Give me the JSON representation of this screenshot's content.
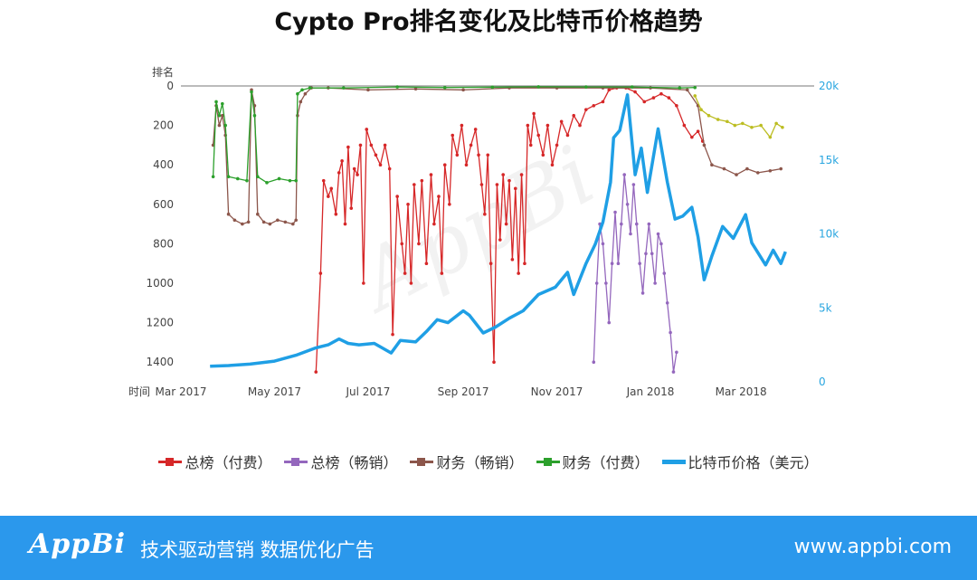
{
  "title": "Cypto Pro排名变化及比特币价格趋势",
  "footer": {
    "logo": "AppBi",
    "slogan": "技术驱动营销 数据优化广告",
    "website": "www.appbi.com"
  },
  "watermark": "AppBi",
  "colors": {
    "total_paid": "#d62728",
    "total_grossing": "#9467bd",
    "finance_grossing": "#8c564b",
    "finance_paid": "#2ca02c",
    "btc": "#1f9fe5",
    "extra": "#bcbd22",
    "footer_bg": "#2b98ec"
  },
  "chart_data": {
    "type": "line",
    "title": "Cypto Pro排名变化及比特币价格趋势",
    "xlabel": "时间",
    "ylabel_left": "排名",
    "ylabel_right": "",
    "x_ticks": [
      "Mar 2017",
      "May 2017",
      "Jul 2017",
      "Sep 2017",
      "Nov 2017",
      "Jan 2018",
      "Mar 2018"
    ],
    "x_range": [
      "2017-03-01",
      "2018-03-31"
    ],
    "y_left_range": [
      1500,
      0
    ],
    "y_left_reversed": true,
    "y_left_ticks": [
      "0",
      "200",
      "400",
      "600",
      "800",
      "1000",
      "1200",
      "1400"
    ],
    "y_right_range": [
      0,
      20000
    ],
    "y_right_ticks": [
      "0",
      "5k",
      "10k",
      "15k",
      "20k"
    ],
    "grid": false,
    "legend_position": "bottom",
    "series": [
      {
        "name": "总榜（付费）",
        "axis": "left",
        "color": "#d62728",
        "marker": true,
        "points": [
          [
            "2017-05-28",
            1450
          ],
          [
            "2017-05-31",
            950
          ],
          [
            "2017-06-02",
            480
          ],
          [
            "2017-06-05",
            560
          ],
          [
            "2017-06-07",
            520
          ],
          [
            "2017-06-10",
            650
          ],
          [
            "2017-06-12",
            440
          ],
          [
            "2017-06-14",
            380
          ],
          [
            "2017-06-16",
            700
          ],
          [
            "2017-06-18",
            310
          ],
          [
            "2017-06-20",
            620
          ],
          [
            "2017-06-22",
            420
          ],
          [
            "2017-06-24",
            450
          ],
          [
            "2017-06-26",
            300
          ],
          [
            "2017-06-28",
            1000
          ],
          [
            "2017-06-30",
            220
          ],
          [
            "2017-07-03",
            300
          ],
          [
            "2017-07-06",
            350
          ],
          [
            "2017-07-09",
            400
          ],
          [
            "2017-07-12",
            300
          ],
          [
            "2017-07-15",
            420
          ],
          [
            "2017-07-17",
            1260
          ],
          [
            "2017-07-20",
            560
          ],
          [
            "2017-07-23",
            800
          ],
          [
            "2017-07-25",
            950
          ],
          [
            "2017-07-27",
            600
          ],
          [
            "2017-07-29",
            1000
          ],
          [
            "2017-07-31",
            500
          ],
          [
            "2017-08-03",
            800
          ],
          [
            "2017-08-05",
            480
          ],
          [
            "2017-08-08",
            900
          ],
          [
            "2017-08-11",
            450
          ],
          [
            "2017-08-13",
            700
          ],
          [
            "2017-08-16",
            560
          ],
          [
            "2017-08-18",
            950
          ],
          [
            "2017-08-20",
            400
          ],
          [
            "2017-08-23",
            600
          ],
          [
            "2017-08-25",
            250
          ],
          [
            "2017-08-28",
            350
          ],
          [
            "2017-08-31",
            200
          ],
          [
            "2017-09-03",
            400
          ],
          [
            "2017-09-06",
            300
          ],
          [
            "2017-09-09",
            220
          ],
          [
            "2017-09-11",
            350
          ],
          [
            "2017-09-13",
            500
          ],
          [
            "2017-09-15",
            650
          ],
          [
            "2017-09-17",
            350
          ],
          [
            "2017-09-19",
            900
          ],
          [
            "2017-09-21",
            1400
          ],
          [
            "2017-09-23",
            500
          ],
          [
            "2017-09-25",
            780
          ],
          [
            "2017-09-27",
            450
          ],
          [
            "2017-09-29",
            700
          ],
          [
            "2017-10-01",
            480
          ],
          [
            "2017-10-03",
            880
          ],
          [
            "2017-10-05",
            520
          ],
          [
            "2017-10-07",
            950
          ],
          [
            "2017-10-09",
            450
          ],
          [
            "2017-10-11",
            900
          ],
          [
            "2017-10-13",
            200
          ],
          [
            "2017-10-15",
            300
          ],
          [
            "2017-10-17",
            140
          ],
          [
            "2017-10-20",
            250
          ],
          [
            "2017-10-23",
            350
          ],
          [
            "2017-10-26",
            200
          ],
          [
            "2017-10-29",
            400
          ],
          [
            "2017-11-01",
            300
          ],
          [
            "2017-11-04",
            180
          ],
          [
            "2017-11-08",
            250
          ],
          [
            "2017-11-12",
            150
          ],
          [
            "2017-11-16",
            200
          ],
          [
            "2017-11-20",
            120
          ],
          [
            "2017-11-25",
            100
          ],
          [
            "2017-12-01",
            80
          ],
          [
            "2017-12-05",
            20
          ],
          [
            "2017-12-10",
            10
          ],
          [
            "2017-12-16",
            10
          ],
          [
            "2017-12-22",
            30
          ],
          [
            "2017-12-28",
            80
          ],
          [
            "2018-01-03",
            60
          ],
          [
            "2018-01-08",
            40
          ],
          [
            "2018-01-13",
            60
          ],
          [
            "2018-01-18",
            100
          ],
          [
            "2018-01-23",
            200
          ],
          [
            "2018-01-28",
            260
          ],
          [
            "2018-02-01",
            230
          ],
          [
            "2018-02-04",
            280
          ]
        ]
      },
      {
        "name": "总榜（畅销）",
        "axis": "left",
        "color": "#9467bd",
        "marker": true,
        "points": [
          [
            "2017-11-25",
            1400
          ],
          [
            "2017-11-27",
            1000
          ],
          [
            "2017-11-29",
            700
          ],
          [
            "2017-12-01",
            800
          ],
          [
            "2017-12-03",
            1000
          ],
          [
            "2017-12-05",
            1200
          ],
          [
            "2017-12-07",
            900
          ],
          [
            "2017-12-09",
            640
          ],
          [
            "2017-12-11",
            900
          ],
          [
            "2017-12-13",
            700
          ],
          [
            "2017-12-15",
            450
          ],
          [
            "2017-12-17",
            600
          ],
          [
            "2017-12-19",
            750
          ],
          [
            "2017-12-21",
            500
          ],
          [
            "2017-12-23",
            700
          ],
          [
            "2017-12-25",
            900
          ],
          [
            "2017-12-27",
            1050
          ],
          [
            "2017-12-29",
            850
          ],
          [
            "2017-12-31",
            700
          ],
          [
            "2018-01-02",
            850
          ],
          [
            "2018-01-04",
            1000
          ],
          [
            "2018-01-06",
            750
          ],
          [
            "2018-01-08",
            800
          ],
          [
            "2018-01-10",
            950
          ],
          [
            "2018-01-12",
            1100
          ],
          [
            "2018-01-14",
            1250
          ],
          [
            "2018-01-16",
            1450
          ],
          [
            "2018-01-18",
            1350
          ]
        ]
      },
      {
        "name": "财务（畅销）",
        "axis": "left",
        "color": "#8c564b",
        "marker": true,
        "points": [
          [
            "2017-03-22",
            300
          ],
          [
            "2017-03-24",
            100
          ],
          [
            "2017-03-26",
            200
          ],
          [
            "2017-03-28",
            150
          ],
          [
            "2017-03-30",
            250
          ],
          [
            "2017-04-01",
            650
          ],
          [
            "2017-04-05",
            680
          ],
          [
            "2017-04-10",
            700
          ],
          [
            "2017-04-14",
            690
          ],
          [
            "2017-04-16",
            20
          ],
          [
            "2017-04-18",
            100
          ],
          [
            "2017-04-20",
            650
          ],
          [
            "2017-04-24",
            690
          ],
          [
            "2017-04-28",
            700
          ],
          [
            "2017-05-03",
            680
          ],
          [
            "2017-05-08",
            690
          ],
          [
            "2017-05-13",
            700
          ],
          [
            "2017-05-15",
            680
          ],
          [
            "2017-05-16",
            150
          ],
          [
            "2017-05-18",
            80
          ],
          [
            "2017-05-21",
            40
          ],
          [
            "2017-05-25",
            10
          ],
          [
            "2017-06-05",
            10
          ],
          [
            "2017-07-01",
            20
          ],
          [
            "2017-08-01",
            15
          ],
          [
            "2017-09-01",
            20
          ],
          [
            "2017-10-01",
            10
          ],
          [
            "2017-11-01",
            10
          ],
          [
            "2017-12-01",
            10
          ],
          [
            "2018-01-01",
            10
          ],
          [
            "2018-01-25",
            20
          ],
          [
            "2018-02-01",
            100
          ],
          [
            "2018-02-05",
            300
          ],
          [
            "2018-02-10",
            400
          ],
          [
            "2018-02-18",
            420
          ],
          [
            "2018-02-26",
            450
          ],
          [
            "2018-03-05",
            420
          ],
          [
            "2018-03-12",
            440
          ],
          [
            "2018-03-20",
            430
          ],
          [
            "2018-03-27",
            420
          ]
        ]
      },
      {
        "name": "财务（付费）",
        "axis": "left",
        "color": "#2ca02c",
        "marker": true,
        "points": [
          [
            "2017-03-22",
            460
          ],
          [
            "2017-03-24",
            80
          ],
          [
            "2017-03-26",
            150
          ],
          [
            "2017-03-28",
            90
          ],
          [
            "2017-03-30",
            200
          ],
          [
            "2017-04-01",
            460
          ],
          [
            "2017-04-07",
            470
          ],
          [
            "2017-04-13",
            480
          ],
          [
            "2017-04-16",
            30
          ],
          [
            "2017-04-18",
            150
          ],
          [
            "2017-04-20",
            460
          ],
          [
            "2017-04-26",
            490
          ],
          [
            "2017-05-04",
            470
          ],
          [
            "2017-05-11",
            480
          ],
          [
            "2017-05-15",
            480
          ],
          [
            "2017-05-16",
            40
          ],
          [
            "2017-05-19",
            20
          ],
          [
            "2017-05-24",
            10
          ],
          [
            "2017-06-15",
            10
          ],
          [
            "2017-07-20",
            5
          ],
          [
            "2017-08-20",
            8
          ],
          [
            "2017-09-20",
            6
          ],
          [
            "2017-10-20",
            4
          ],
          [
            "2017-11-20",
            5
          ],
          [
            "2017-12-20",
            5
          ],
          [
            "2018-01-20",
            10
          ],
          [
            "2018-01-30",
            8
          ]
        ]
      },
      {
        "name": "比特币价格（美元）",
        "axis": "right",
        "color": "#1f9fe5",
        "marker": false,
        "points": [
          [
            "2017-03-20",
            1050
          ],
          [
            "2017-04-01",
            1100
          ],
          [
            "2017-04-15",
            1200
          ],
          [
            "2017-05-01",
            1400
          ],
          [
            "2017-05-15",
            1800
          ],
          [
            "2017-05-28",
            2300
          ],
          [
            "2017-06-05",
            2500
          ],
          [
            "2017-06-12",
            2900
          ],
          [
            "2017-06-18",
            2600
          ],
          [
            "2017-06-25",
            2500
          ],
          [
            "2017-07-05",
            2600
          ],
          [
            "2017-07-16",
            1950
          ],
          [
            "2017-07-22",
            2800
          ],
          [
            "2017-08-01",
            2700
          ],
          [
            "2017-08-08",
            3400
          ],
          [
            "2017-08-15",
            4200
          ],
          [
            "2017-08-22",
            4000
          ],
          [
            "2017-09-01",
            4800
          ],
          [
            "2017-09-05",
            4500
          ],
          [
            "2017-09-14",
            3300
          ],
          [
            "2017-09-22",
            3700
          ],
          [
            "2017-10-01",
            4300
          ],
          [
            "2017-10-10",
            4800
          ],
          [
            "2017-10-20",
            5900
          ],
          [
            "2017-10-31",
            6400
          ],
          [
            "2017-11-08",
            7400
          ],
          [
            "2017-11-12",
            5900
          ],
          [
            "2017-11-20",
            8000
          ],
          [
            "2017-11-26",
            9300
          ],
          [
            "2017-12-01",
            10800
          ],
          [
            "2017-12-06",
            13500
          ],
          [
            "2017-12-08",
            16500
          ],
          [
            "2017-12-12",
            17000
          ],
          [
            "2017-12-17",
            19400
          ],
          [
            "2017-12-22",
            14000
          ],
          [
            "2017-12-26",
            15800
          ],
          [
            "2017-12-30",
            12800
          ],
          [
            "2018-01-06",
            17100
          ],
          [
            "2018-01-12",
            13500
          ],
          [
            "2018-01-17",
            11000
          ],
          [
            "2018-01-22",
            11200
          ],
          [
            "2018-01-28",
            11800
          ],
          [
            "2018-02-01",
            9800
          ],
          [
            "2018-02-05",
            6900
          ],
          [
            "2018-02-10",
            8500
          ],
          [
            "2018-02-17",
            10500
          ],
          [
            "2018-02-24",
            9700
          ],
          [
            "2018-03-04",
            11300
          ],
          [
            "2018-03-08",
            9400
          ],
          [
            "2018-03-17",
            7900
          ],
          [
            "2018-03-22",
            8900
          ],
          [
            "2018-03-27",
            8000
          ],
          [
            "2018-03-30",
            8800
          ]
        ]
      },
      {
        "name": "",
        "axis": "left",
        "color": "#bcbd22",
        "marker": true,
        "points": [
          [
            "2018-01-30",
            50
          ],
          [
            "2018-02-03",
            120
          ],
          [
            "2018-02-08",
            150
          ],
          [
            "2018-02-14",
            170
          ],
          [
            "2018-02-20",
            180
          ],
          [
            "2018-02-25",
            200
          ],
          [
            "2018-03-02",
            190
          ],
          [
            "2018-03-08",
            210
          ],
          [
            "2018-03-14",
            200
          ],
          [
            "2018-03-20",
            260
          ],
          [
            "2018-03-24",
            190
          ],
          [
            "2018-03-28",
            210
          ]
        ]
      }
    ]
  }
}
